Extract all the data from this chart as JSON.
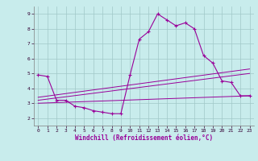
{
  "xlabel": "Windchill (Refroidissement éolien,°C)",
  "background_color": "#c8ecec",
  "grid_color": "#a0c8c8",
  "line_color": "#990099",
  "xlim": [
    -0.5,
    23.5
  ],
  "ylim": [
    1.5,
    9.5
  ],
  "yticks": [
    2,
    3,
    4,
    5,
    6,
    7,
    8,
    9
  ],
  "xticks": [
    0,
    1,
    2,
    3,
    4,
    5,
    6,
    7,
    8,
    9,
    10,
    11,
    12,
    13,
    14,
    15,
    16,
    17,
    18,
    19,
    20,
    21,
    22,
    23
  ],
  "curve1_x": [
    0,
    1,
    2,
    3,
    4,
    5,
    6,
    7,
    8,
    9,
    10,
    11,
    12,
    13,
    14,
    15,
    16,
    17,
    18,
    19,
    20,
    21,
    22,
    23
  ],
  "curve1_y": [
    4.9,
    4.8,
    3.2,
    3.2,
    2.8,
    2.7,
    2.5,
    2.4,
    2.3,
    2.3,
    4.9,
    7.3,
    7.8,
    9.0,
    8.6,
    8.2,
    8.4,
    8.0,
    6.2,
    5.7,
    4.5,
    4.4,
    3.5,
    3.5
  ],
  "line1_x": [
    0,
    23
  ],
  "line1_y": [
    3.2,
    5.0
  ],
  "line2_x": [
    0,
    23
  ],
  "line2_y": [
    3.0,
    3.5
  ],
  "line3_x": [
    0,
    23
  ],
  "line3_y": [
    3.4,
    5.3
  ]
}
